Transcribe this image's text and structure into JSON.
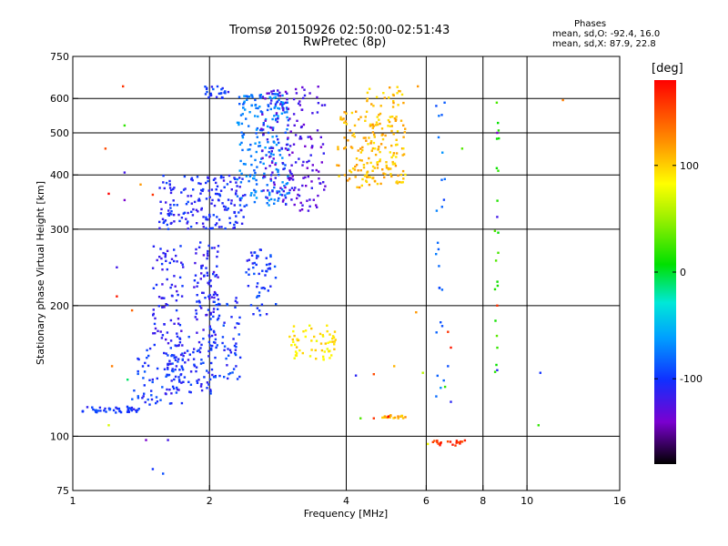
{
  "header": {
    "title": "Tromsø 20150926 02:50:00-02:51:43",
    "subtitle": "RwPretec (8p)"
  },
  "stats": {
    "heading": "Phases",
    "line_o": "mean, sd,O: -92.4, 16.0",
    "line_x": "mean, sd,X:  87.9, 22.8"
  },
  "colorbar": {
    "unit_label": "[deg]",
    "ticks": [
      {
        "value": 100,
        "label": "100"
      },
      {
        "value": 0,
        "label": "0"
      },
      {
        "value": -100,
        "label": "-100"
      }
    ],
    "range": [
      -180,
      180
    ]
  },
  "chart_data": {
    "type": "scatter",
    "xlabel": "Frequency [MHz]",
    "ylabel": "Stationary phase Virtual Height [km]",
    "x_scale": "log",
    "y_scale": "log",
    "xlim": [
      1,
      16
    ],
    "ylim": [
      75,
      750
    ],
    "xticks": [
      {
        "v": 1,
        "l": "1"
      },
      {
        "v": 2,
        "l": "2"
      },
      {
        "v": 4,
        "l": "4"
      },
      {
        "v": 6,
        "l": "6"
      },
      {
        "v": 8,
        "l": "8"
      },
      {
        "v": 10,
        "l": "10"
      },
      {
        "v": 16,
        "l": "16"
      }
    ],
    "yticks": [
      {
        "v": 75,
        "l": "75"
      },
      {
        "v": 100,
        "l": "100"
      },
      {
        "v": 200,
        "l": "200"
      },
      {
        "v": 300,
        "l": "300"
      },
      {
        "v": 400,
        "l": "400"
      },
      {
        "v": 500,
        "l": "500"
      },
      {
        "v": 600,
        "l": "600"
      },
      {
        "v": 750,
        "l": "750"
      }
    ],
    "vertical_lines": [
      2,
      4,
      6,
      8,
      10
    ],
    "grid": true,
    "color_variable": "phase [deg]",
    "traces": [
      {
        "f0": 1.05,
        "f1": 1.4,
        "h0": 113,
        "h1": 117,
        "phase": -100,
        "n": 45
      },
      {
        "f0": 1.35,
        "f1": 1.75,
        "h0": 118,
        "h1": 160,
        "phase": -100,
        "n": 70
      },
      {
        "f0": 1.5,
        "f1": 1.75,
        "h0": 160,
        "h1": 280,
        "phase": -110,
        "n": 80
      },
      {
        "f0": 1.6,
        "f1": 2.05,
        "h0": 125,
        "h1": 170,
        "phase": -105,
        "n": 90
      },
      {
        "f0": 1.85,
        "f1": 2.1,
        "h0": 170,
        "h1": 280,
        "phase": -110,
        "n": 80
      },
      {
        "f0": 2.0,
        "f1": 2.35,
        "h0": 135,
        "h1": 210,
        "phase": -100,
        "n": 70
      },
      {
        "f0": 2.4,
        "f1": 2.8,
        "h0": 190,
        "h1": 270,
        "phase": -100,
        "n": 55
      },
      {
        "f0": 1.55,
        "f1": 2.4,
        "h0": 300,
        "h1": 400,
        "phase": -105,
        "n": 180
      },
      {
        "f0": 1.95,
        "f1": 2.2,
        "h0": 600,
        "h1": 640,
        "phase": -100,
        "n": 25
      },
      {
        "f0": 2.3,
        "f1": 3.0,
        "h0": 340,
        "h1": 620,
        "phase": -75,
        "n": 220
      },
      {
        "f0": 2.6,
        "f1": 3.6,
        "h0": 330,
        "h1": 640,
        "phase": -125,
        "n": 180
      },
      {
        "f0": 3.0,
        "f1": 3.8,
        "h0": 150,
        "h1": 180,
        "phase": 90,
        "n": 60
      },
      {
        "f0": 3.8,
        "f1": 4.6,
        "h0": 370,
        "h1": 560,
        "phase": 110,
        "n": 70
      },
      {
        "f0": 4.4,
        "f1": 5.4,
        "h0": 380,
        "h1": 640,
        "phase": 105,
        "n": 140
      },
      {
        "f0": 4.8,
        "f1": 5.4,
        "h0": 110,
        "h1": 112,
        "phase": 110,
        "n": 20
      },
      {
        "f0": 6.2,
        "f1": 7.3,
        "h0": 95,
        "h1": 98,
        "phase": 160,
        "n": 20
      },
      {
        "f0": 6.3,
        "f1": 6.6,
        "h0": 120,
        "h1": 600,
        "phase": -80,
        "n": 25
      },
      {
        "f0": 8.5,
        "f1": 8.7,
        "h0": 140,
        "h1": 640,
        "phase": 20,
        "n": 20
      }
    ],
    "scattered_points": [
      {
        "x": 1.29,
        "y": 640,
        "phase": 160
      },
      {
        "x": 1.3,
        "y": 520,
        "phase": 20
      },
      {
        "x": 1.18,
        "y": 460,
        "phase": 150
      },
      {
        "x": 1.3,
        "y": 405,
        "phase": -120
      },
      {
        "x": 1.41,
        "y": 380,
        "phase": 120
      },
      {
        "x": 1.2,
        "y": 362,
        "phase": 180
      },
      {
        "x": 1.5,
        "y": 360,
        "phase": 160
      },
      {
        "x": 1.3,
        "y": 350,
        "phase": -140
      },
      {
        "x": 1.25,
        "y": 245,
        "phase": -120
      },
      {
        "x": 1.25,
        "y": 210,
        "phase": 170
      },
      {
        "x": 1.35,
        "y": 195,
        "phase": 140
      },
      {
        "x": 1.22,
        "y": 145,
        "phase": 130
      },
      {
        "x": 1.32,
        "y": 135,
        "phase": -10
      },
      {
        "x": 1.45,
        "y": 98,
        "phase": -140
      },
      {
        "x": 1.62,
        "y": 98,
        "phase": -120
      },
      {
        "x": 1.5,
        "y": 84,
        "phase": -100
      },
      {
        "x": 1.58,
        "y": 82,
        "phase": -90
      },
      {
        "x": 1.2,
        "y": 106,
        "phase": 70
      },
      {
        "x": 4.2,
        "y": 138,
        "phase": -110
      },
      {
        "x": 4.6,
        "y": 139,
        "phase": 150
      },
      {
        "x": 5.7,
        "y": 193,
        "phase": 120
      },
      {
        "x": 5.1,
        "y": 145,
        "phase": 110
      },
      {
        "x": 5.9,
        "y": 140,
        "phase": 60
      },
      {
        "x": 6.7,
        "y": 174,
        "phase": 160
      },
      {
        "x": 6.8,
        "y": 160,
        "phase": 170
      },
      {
        "x": 6.7,
        "y": 145,
        "phase": -90
      },
      {
        "x": 6.6,
        "y": 130,
        "phase": 20
      },
      {
        "x": 6.8,
        "y": 120,
        "phase": -110
      },
      {
        "x": 4.3,
        "y": 110,
        "phase": 30
      },
      {
        "x": 4.6,
        "y": 110,
        "phase": 160
      },
      {
        "x": 4.95,
        "y": 111,
        "phase": 180
      },
      {
        "x": 6.05,
        "y": 96,
        "phase": 80
      },
      {
        "x": 8.6,
        "y": 142,
        "phase": -110
      },
      {
        "x": 10.7,
        "y": 140,
        "phase": -100
      },
      {
        "x": 10.6,
        "y": 106,
        "phase": 20
      },
      {
        "x": 7.2,
        "y": 460,
        "phase": 30
      },
      {
        "x": 5.75,
        "y": 640,
        "phase": 120
      },
      {
        "x": 12.0,
        "y": 595,
        "phase": 130
      },
      {
        "x": 8.6,
        "y": 500,
        "phase": -140
      },
      {
        "x": 8.6,
        "y": 320,
        "phase": -120
      },
      {
        "x": 8.6,
        "y": 200,
        "phase": 160
      }
    ]
  }
}
